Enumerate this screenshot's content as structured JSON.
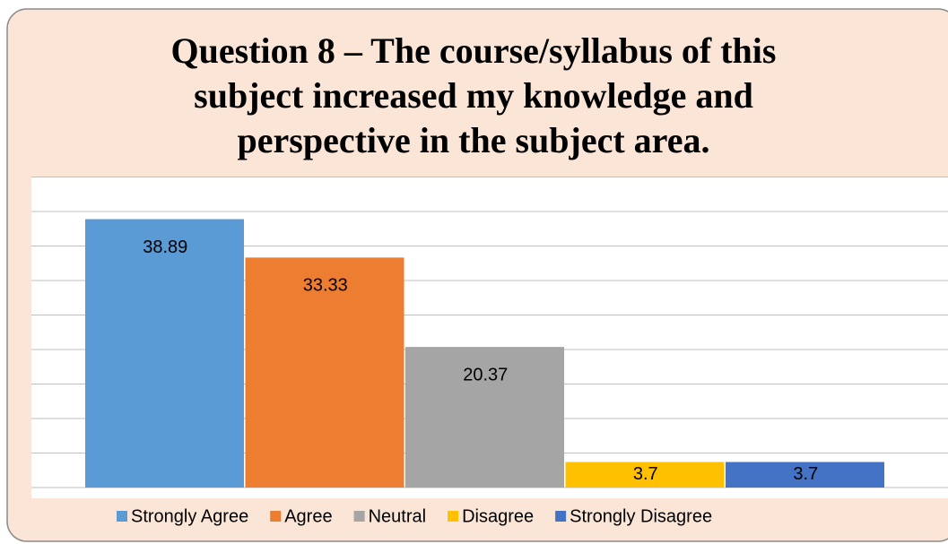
{
  "chart_data": {
    "type": "bar",
    "title": "Question 8 – The course/syllabus of this subject increased my knowledge and perspective in the subject area.",
    "categories": [
      null
    ],
    "series": [
      {
        "name": "Strongly Agree",
        "color": "#5b9bd5",
        "values": [
          38.89
        ]
      },
      {
        "name": "Agree",
        "color": "#ed7d31",
        "values": [
          33.33
        ]
      },
      {
        "name": "Neutral",
        "color": "#a5a5a5",
        "values": [
          20.37
        ]
      },
      {
        "name": "Disagree",
        "color": "#ffc000",
        "values": [
          3.7
        ]
      },
      {
        "name": "Strongly Disagree",
        "color": "#4472c4",
        "values": [
          3.7
        ]
      }
    ],
    "ylim": [
      0,
      45
    ],
    "yticks": [
      0,
      5,
      10,
      15,
      20,
      25,
      30,
      35,
      40,
      45
    ],
    "grid": true,
    "legend": "bottom"
  }
}
